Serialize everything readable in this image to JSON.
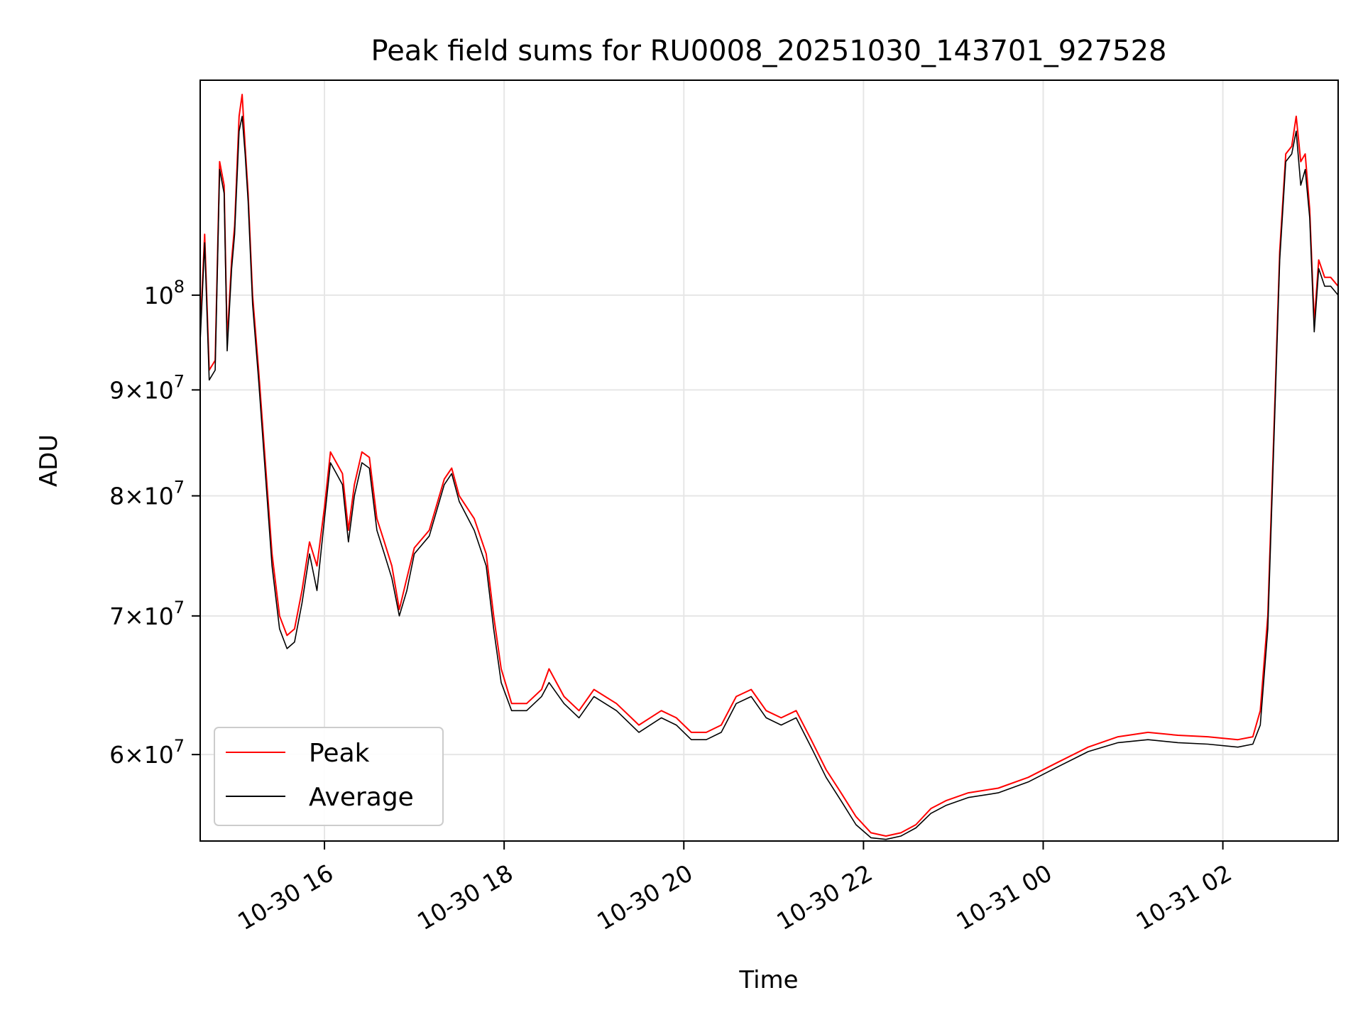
{
  "chart_data": {
    "type": "line",
    "title": "Peak field sums for RU0008_20251030_143701_927528",
    "xlabel": "Time",
    "ylabel": "ADU",
    "yscale": "log",
    "xlim": [
      "2025-10-30 14:37",
      "2025-10-31 03:17"
    ],
    "ylim": [
      54500000.0,
      127000000.0
    ],
    "grid": true,
    "legend_position": "lower-left",
    "x_ticks": [
      {
        "value": "2025-10-30 16:00",
        "label": "10-30 16"
      },
      {
        "value": "2025-10-30 18:00",
        "label": "10-30 18"
      },
      {
        "value": "2025-10-30 20:00",
        "label": "10-30 20"
      },
      {
        "value": "2025-10-30 22:00",
        "label": "10-30 22"
      },
      {
        "value": "2025-10-31 00:00",
        "label": "10-31 00"
      },
      {
        "value": "2025-10-31 02:00",
        "label": "10-31 02"
      }
    ],
    "y_ticks": [
      {
        "value": 60000000,
        "mantissa": "6",
        "base": "10",
        "exp": "7"
      },
      {
        "value": 70000000,
        "mantissa": "7",
        "base": "10",
        "exp": "7"
      },
      {
        "value": 80000000,
        "mantissa": "8",
        "base": "10",
        "exp": "7"
      },
      {
        "value": 90000000,
        "mantissa": "9",
        "base": "10",
        "exp": "7"
      },
      {
        "value": 100000000,
        "mantissa": "",
        "base": "10",
        "exp": "8"
      }
    ],
    "series": [
      {
        "name": "Peak",
        "color": "#ff0000",
        "points": [
          [
            "2025-10-30 14:37",
            96000000.0
          ],
          [
            "2025-10-30 14:40",
            107000000.0
          ],
          [
            "2025-10-30 14:43",
            92000000.0
          ],
          [
            "2025-10-30 14:47",
            93000000.0
          ],
          [
            "2025-10-30 14:50",
            116000000.0
          ],
          [
            "2025-10-30 14:53",
            113000000.0
          ],
          [
            "2025-10-30 14:55",
            95000000.0
          ],
          [
            "2025-10-30 14:58",
            104000000.0
          ],
          [
            "2025-10-30 15:00",
            108000000.0
          ],
          [
            "2025-10-30 15:03",
            122000000.0
          ],
          [
            "2025-10-30 15:05",
            125000000.0
          ],
          [
            "2025-10-30 15:07",
            118000000.0
          ],
          [
            "2025-10-30 15:09",
            112000000.0
          ],
          [
            "2025-10-30 15:12",
            100000000.0
          ],
          [
            "2025-10-30 15:16",
            92000000.0
          ],
          [
            "2025-10-30 15:20",
            84000000.0
          ],
          [
            "2025-10-30 15:25",
            75000000.0
          ],
          [
            "2025-10-30 15:30",
            70000000.0
          ],
          [
            "2025-10-30 15:35",
            68500000.0
          ],
          [
            "2025-10-30 15:40",
            69000000.0
          ],
          [
            "2025-10-30 15:45",
            72000000.0
          ],
          [
            "2025-10-30 15:50",
            76000000.0
          ],
          [
            "2025-10-30 15:55",
            74000000.0
          ],
          [
            "2025-10-30 16:00",
            79000000.0
          ],
          [
            "2025-10-30 16:04",
            84000000.0
          ],
          [
            "2025-10-30 16:08",
            83000000.0
          ],
          [
            "2025-10-30 16:12",
            82000000.0
          ],
          [
            "2025-10-30 16:16",
            77000000.0
          ],
          [
            "2025-10-30 16:20",
            81000000.0
          ],
          [
            "2025-10-30 16:25",
            84000000.0
          ],
          [
            "2025-10-30 16:30",
            83500000.0
          ],
          [
            "2025-10-30 16:35",
            78000000.0
          ],
          [
            "2025-10-30 16:40",
            76000000.0
          ],
          [
            "2025-10-30 16:45",
            74000000.0
          ],
          [
            "2025-10-30 16:50",
            70500000.0
          ],
          [
            "2025-10-30 16:55",
            73000000.0
          ],
          [
            "2025-10-30 17:00",
            75500000.0
          ],
          [
            "2025-10-30 17:10",
            77000000.0
          ],
          [
            "2025-10-30 17:20",
            81500000.0
          ],
          [
            "2025-10-30 17:25",
            82500000.0
          ],
          [
            "2025-10-30 17:30",
            80000000.0
          ],
          [
            "2025-10-30 17:40",
            78000000.0
          ],
          [
            "2025-10-30 17:48",
            75000000.0
          ],
          [
            "2025-10-30 17:53",
            70000000.0
          ],
          [
            "2025-10-30 17:58",
            66000000.0
          ],
          [
            "2025-10-30 18:05",
            63500000.0
          ],
          [
            "2025-10-30 18:15",
            63500000.0
          ],
          [
            "2025-10-30 18:25",
            64500000.0
          ],
          [
            "2025-10-30 18:30",
            66000000.0
          ],
          [
            "2025-10-30 18:40",
            64000000.0
          ],
          [
            "2025-10-30 18:50",
            63000000.0
          ],
          [
            "2025-10-30 19:00",
            64500000.0
          ],
          [
            "2025-10-30 19:15",
            63500000.0
          ],
          [
            "2025-10-30 19:30",
            62000000.0
          ],
          [
            "2025-10-30 19:45",
            63000000.0
          ],
          [
            "2025-10-30 19:55",
            62500000.0
          ],
          [
            "2025-10-30 20:05",
            61500000.0
          ],
          [
            "2025-10-30 20:15",
            61500000.0
          ],
          [
            "2025-10-30 20:25",
            62000000.0
          ],
          [
            "2025-10-30 20:35",
            64000000.0
          ],
          [
            "2025-10-30 20:45",
            64500000.0
          ],
          [
            "2025-10-30 20:55",
            63000000.0
          ],
          [
            "2025-10-30 21:05",
            62500000.0
          ],
          [
            "2025-10-30 21:15",
            63000000.0
          ],
          [
            "2025-10-30 21:25",
            61000000.0
          ],
          [
            "2025-10-30 21:35",
            59000000.0
          ],
          [
            "2025-10-30 21:45",
            57500000.0
          ],
          [
            "2025-10-30 21:55",
            56000000.0
          ],
          [
            "2025-10-30 22:05",
            55000000.0
          ],
          [
            "2025-10-30 22:15",
            54800000.0
          ],
          [
            "2025-10-30 22:25",
            55000000.0
          ],
          [
            "2025-10-30 22:35",
            55500000.0
          ],
          [
            "2025-10-30 22:45",
            56500000.0
          ],
          [
            "2025-10-30 22:55",
            57000000.0
          ],
          [
            "2025-10-30 23:10",
            57500000.0
          ],
          [
            "2025-10-30 23:30",
            57800000.0
          ],
          [
            "2025-10-30 23:50",
            58500000.0
          ],
          [
            "2025-10-31 00:10",
            59500000.0
          ],
          [
            "2025-10-31 00:30",
            60500000.0
          ],
          [
            "2025-10-31 00:50",
            61200000.0
          ],
          [
            "2025-10-31 01:10",
            61500000.0
          ],
          [
            "2025-10-31 01:30",
            61300000.0
          ],
          [
            "2025-10-31 01:50",
            61200000.0
          ],
          [
            "2025-10-31 02:10",
            61000000.0
          ],
          [
            "2025-10-31 02:20",
            61200000.0
          ],
          [
            "2025-10-31 02:25",
            63000000.0
          ],
          [
            "2025-10-31 02:30",
            70000000.0
          ],
          [
            "2025-10-31 02:35",
            90000000.0
          ],
          [
            "2025-10-31 02:38",
            105000000.0
          ],
          [
            "2025-10-31 02:42",
            117000000.0
          ],
          [
            "2025-10-31 02:46",
            118000000.0
          ],
          [
            "2025-10-31 02:49",
            122000000.0
          ],
          [
            "2025-10-31 02:52",
            116000000.0
          ],
          [
            "2025-10-31 02:55",
            117000000.0
          ],
          [
            "2025-10-31 02:58",
            110000000.0
          ],
          [
            "2025-10-31 03:01",
            97000000.0
          ],
          [
            "2025-10-31 03:04",
            104000000.0
          ],
          [
            "2025-10-31 03:08",
            102000000.0
          ],
          [
            "2025-10-31 03:12",
            102000000.0
          ],
          [
            "2025-10-31 03:17",
            101000000.0
          ]
        ]
      },
      {
        "name": "Average",
        "color": "#000000",
        "points": [
          [
            "2025-10-30 14:37",
            95000000.0
          ],
          [
            "2025-10-30 14:40",
            106000000.0
          ],
          [
            "2025-10-30 14:43",
            91000000.0
          ],
          [
            "2025-10-30 14:47",
            92000000.0
          ],
          [
            "2025-10-30 14:50",
            115000000.0
          ],
          [
            "2025-10-30 14:53",
            112000000.0
          ],
          [
            "2025-10-30 14:55",
            94000000.0
          ],
          [
            "2025-10-30 14:58",
            103000000.0
          ],
          [
            "2025-10-30 15:00",
            107000000.0
          ],
          [
            "2025-10-30 15:03",
            120000000.0
          ],
          [
            "2025-10-30 15:05",
            122000000.0
          ],
          [
            "2025-10-30 15:07",
            117000000.0
          ],
          [
            "2025-10-30 15:09",
            111000000.0
          ],
          [
            "2025-10-30 15:12",
            99000000.0
          ],
          [
            "2025-10-30 15:16",
            91000000.0
          ],
          [
            "2025-10-30 15:20",
            83000000.0
          ],
          [
            "2025-10-30 15:25",
            74000000.0
          ],
          [
            "2025-10-30 15:30",
            69000000.0
          ],
          [
            "2025-10-30 15:35",
            67500000.0
          ],
          [
            "2025-10-30 15:40",
            68000000.0
          ],
          [
            "2025-10-30 15:45",
            71000000.0
          ],
          [
            "2025-10-30 15:50",
            75000000.0
          ],
          [
            "2025-10-30 15:55",
            72000000.0
          ],
          [
            "2025-10-30 16:00",
            78000000.0
          ],
          [
            "2025-10-30 16:04",
            83000000.0
          ],
          [
            "2025-10-30 16:08",
            82000000.0
          ],
          [
            "2025-10-30 16:12",
            81000000.0
          ],
          [
            "2025-10-30 16:16",
            76000000.0
          ],
          [
            "2025-10-30 16:20",
            80000000.0
          ],
          [
            "2025-10-30 16:25",
            83000000.0
          ],
          [
            "2025-10-30 16:30",
            82500000.0
          ],
          [
            "2025-10-30 16:35",
            77000000.0
          ],
          [
            "2025-10-30 16:40",
            75000000.0
          ],
          [
            "2025-10-30 16:45",
            73000000.0
          ],
          [
            "2025-10-30 16:50",
            70000000.0
          ],
          [
            "2025-10-30 16:55",
            72000000.0
          ],
          [
            "2025-10-30 17:00",
            75000000.0
          ],
          [
            "2025-10-30 17:10",
            76500000.0
          ],
          [
            "2025-10-30 17:20",
            81000000.0
          ],
          [
            "2025-10-30 17:25",
            82000000.0
          ],
          [
            "2025-10-30 17:30",
            79500000.0
          ],
          [
            "2025-10-30 17:40",
            77000000.0
          ],
          [
            "2025-10-30 17:48",
            74000000.0
          ],
          [
            "2025-10-30 17:53",
            69000000.0
          ],
          [
            "2025-10-30 17:58",
            65000000.0
          ],
          [
            "2025-10-30 18:05",
            63000000.0
          ],
          [
            "2025-10-30 18:15",
            63000000.0
          ],
          [
            "2025-10-30 18:25",
            64000000.0
          ],
          [
            "2025-10-30 18:30",
            65000000.0
          ],
          [
            "2025-10-30 18:40",
            63500000.0
          ],
          [
            "2025-10-30 18:50",
            62500000.0
          ],
          [
            "2025-10-30 19:00",
            64000000.0
          ],
          [
            "2025-10-30 19:15",
            63000000.0
          ],
          [
            "2025-10-30 19:30",
            61500000.0
          ],
          [
            "2025-10-30 19:45",
            62500000.0
          ],
          [
            "2025-10-30 19:55",
            62000000.0
          ],
          [
            "2025-10-30 20:05",
            61000000.0
          ],
          [
            "2025-10-30 20:15",
            61000000.0
          ],
          [
            "2025-10-30 20:25",
            61500000.0
          ],
          [
            "2025-10-30 20:35",
            63500000.0
          ],
          [
            "2025-10-30 20:45",
            64000000.0
          ],
          [
            "2025-10-30 20:55",
            62500000.0
          ],
          [
            "2025-10-30 21:05",
            62000000.0
          ],
          [
            "2025-10-30 21:15",
            62500000.0
          ],
          [
            "2025-10-30 21:25",
            60500000.0
          ],
          [
            "2025-10-30 21:35",
            58500000.0
          ],
          [
            "2025-10-30 21:45",
            57000000.0
          ],
          [
            "2025-10-30 21:55",
            55500000.0
          ],
          [
            "2025-10-30 22:05",
            54700000.0
          ],
          [
            "2025-10-30 22:15",
            54600000.0
          ],
          [
            "2025-10-30 22:25",
            54800000.0
          ],
          [
            "2025-10-30 22:35",
            55300000.0
          ],
          [
            "2025-10-30 22:45",
            56200000.0
          ],
          [
            "2025-10-30 22:55",
            56700000.0
          ],
          [
            "2025-10-30 23:10",
            57200000.0
          ],
          [
            "2025-10-30 23:30",
            57500000.0
          ],
          [
            "2025-10-30 23:50",
            58200000.0
          ],
          [
            "2025-10-31 00:10",
            59200000.0
          ],
          [
            "2025-10-31 00:30",
            60200000.0
          ],
          [
            "2025-10-31 00:50",
            60800000.0
          ],
          [
            "2025-10-31 01:10",
            61000000.0
          ],
          [
            "2025-10-31 01:30",
            60800000.0
          ],
          [
            "2025-10-31 01:50",
            60700000.0
          ],
          [
            "2025-10-31 02:10",
            60500000.0
          ],
          [
            "2025-10-31 02:20",
            60700000.0
          ],
          [
            "2025-10-31 02:25",
            62000000.0
          ],
          [
            "2025-10-31 02:30",
            69000000.0
          ],
          [
            "2025-10-31 02:35",
            89000000.0
          ],
          [
            "2025-10-31 02:38",
            104000000.0
          ],
          [
            "2025-10-31 02:42",
            116000000.0
          ],
          [
            "2025-10-31 02:46",
            117000000.0
          ],
          [
            "2025-10-31 02:49",
            120000000.0
          ],
          [
            "2025-10-31 02:52",
            113000000.0
          ],
          [
            "2025-10-31 02:55",
            115000000.0
          ],
          [
            "2025-10-31 02:58",
            109000000.0
          ],
          [
            "2025-10-31 03:01",
            96000000.0
          ],
          [
            "2025-10-31 03:04",
            103000000.0
          ],
          [
            "2025-10-31 03:08",
            101000000.0
          ],
          [
            "2025-10-31 03:12",
            101000000.0
          ],
          [
            "2025-10-31 03:17",
            100000000.0
          ]
        ]
      }
    ]
  }
}
